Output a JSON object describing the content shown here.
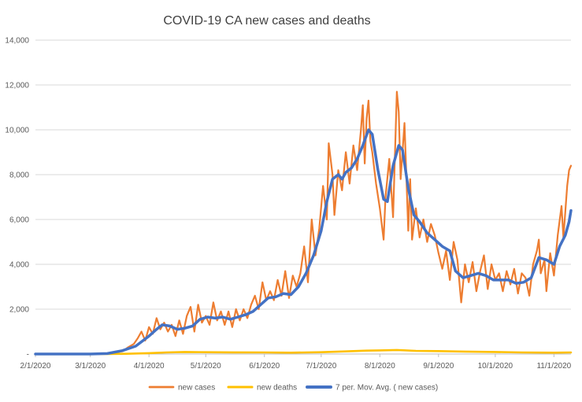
{
  "chart_data": {
    "type": "line",
    "title": "COVID-19 CA new cases and deaths",
    "xlabel": "",
    "ylabel": "",
    "ylim": [
      0,
      14000
    ],
    "xlim": [
      "2020-02-01",
      "2020-11-10"
    ],
    "grid": "horizontal",
    "legend_position": "bottom",
    "y_ticks": [
      0,
      2000,
      4000,
      6000,
      8000,
      10000,
      12000,
      14000
    ],
    "y_tick_labels": [
      "-",
      "2,000",
      "4,000",
      "6,000",
      "8,000",
      "10,000",
      "12,000",
      "14,000"
    ],
    "x_ticks": [
      "2020-02-01",
      "2020-03-01",
      "2020-04-01",
      "2020-05-01",
      "2020-06-01",
      "2020-07-01",
      "2020-08-01",
      "2020-09-01",
      "2020-10-01",
      "2020-11-01"
    ],
    "x_tick_labels": [
      "2/1/2020",
      "3/1/2020",
      "4/1/2020",
      "5/1/2020",
      "6/1/2020",
      "7/1/2020",
      "8/1/2020",
      "9/1/2020",
      "10/1/2020",
      "11/1/2020"
    ],
    "series": [
      {
        "name": "new cases",
        "color": "#ED7D31",
        "points": [
          [
            "2020-02-01",
            0
          ],
          [
            "2020-02-15",
            0
          ],
          [
            "2020-03-01",
            0
          ],
          [
            "2020-03-10",
            20
          ],
          [
            "2020-03-15",
            80
          ],
          [
            "2020-03-18",
            120
          ],
          [
            "2020-03-21",
            300
          ],
          [
            "2020-03-24",
            450
          ],
          [
            "2020-03-26",
            700
          ],
          [
            "2020-03-28",
            1000
          ],
          [
            "2020-03-30",
            600
          ],
          [
            "2020-04-01",
            1200
          ],
          [
            "2020-04-03",
            900
          ],
          [
            "2020-04-05",
            1600
          ],
          [
            "2020-04-07",
            1100
          ],
          [
            "2020-04-09",
            1400
          ],
          [
            "2020-04-11",
            1000
          ],
          [
            "2020-04-13",
            1300
          ],
          [
            "2020-04-15",
            800
          ],
          [
            "2020-04-17",
            1500
          ],
          [
            "2020-04-19",
            900
          ],
          [
            "2020-04-21",
            1700
          ],
          [
            "2020-04-23",
            2100
          ],
          [
            "2020-04-25",
            1000
          ],
          [
            "2020-04-27",
            2200
          ],
          [
            "2020-04-29",
            1400
          ],
          [
            "2020-05-01",
            1700
          ],
          [
            "2020-05-03",
            1300
          ],
          [
            "2020-05-05",
            2300
          ],
          [
            "2020-05-07",
            1500
          ],
          [
            "2020-05-09",
            1900
          ],
          [
            "2020-05-11",
            1300
          ],
          [
            "2020-05-13",
            1900
          ],
          [
            "2020-05-15",
            1200
          ],
          [
            "2020-05-17",
            2000
          ],
          [
            "2020-05-19",
            1500
          ],
          [
            "2020-05-21",
            2000
          ],
          [
            "2020-05-23",
            1600
          ],
          [
            "2020-05-25",
            2200
          ],
          [
            "2020-05-27",
            2600
          ],
          [
            "2020-05-29",
            2000
          ],
          [
            "2020-05-31",
            3200
          ],
          [
            "2020-06-02",
            2400
          ],
          [
            "2020-06-04",
            2800
          ],
          [
            "2020-06-06",
            2400
          ],
          [
            "2020-06-08",
            3300
          ],
          [
            "2020-06-10",
            2600
          ],
          [
            "2020-06-12",
            3700
          ],
          [
            "2020-06-14",
            2500
          ],
          [
            "2020-06-16",
            3500
          ],
          [
            "2020-06-18",
            3000
          ],
          [
            "2020-06-20",
            3600
          ],
          [
            "2020-06-22",
            4800
          ],
          [
            "2020-06-24",
            3200
          ],
          [
            "2020-06-26",
            6000
          ],
          [
            "2020-06-28",
            4400
          ],
          [
            "2020-06-30",
            5600
          ],
          [
            "2020-07-02",
            7500
          ],
          [
            "2020-07-04",
            6000
          ],
          [
            "2020-07-05",
            9400
          ],
          [
            "2020-07-07",
            8000
          ],
          [
            "2020-07-08",
            6200
          ],
          [
            "2020-07-10",
            8200
          ],
          [
            "2020-07-12",
            7300
          ],
          [
            "2020-07-14",
            9000
          ],
          [
            "2020-07-16",
            7600
          ],
          [
            "2020-07-18",
            9300
          ],
          [
            "2020-07-20",
            8200
          ],
          [
            "2020-07-22",
            10000
          ],
          [
            "2020-07-23",
            11100
          ],
          [
            "2020-07-24",
            8500
          ],
          [
            "2020-07-25",
            10500
          ],
          [
            "2020-07-26",
            11300
          ],
          [
            "2020-07-27",
            9500
          ],
          [
            "2020-07-28",
            9000
          ],
          [
            "2020-07-30",
            7600
          ],
          [
            "2020-08-01",
            6500
          ],
          [
            "2020-08-03",
            5100
          ],
          [
            "2020-08-04",
            7000
          ],
          [
            "2020-08-06",
            8700
          ],
          [
            "2020-08-08",
            6100
          ],
          [
            "2020-08-10",
            11700
          ],
          [
            "2020-08-11",
            10800
          ],
          [
            "2020-08-12",
            7800
          ],
          [
            "2020-08-14",
            10300
          ],
          [
            "2020-08-16",
            5500
          ],
          [
            "2020-08-17",
            7800
          ],
          [
            "2020-08-18",
            5100
          ],
          [
            "2020-08-20",
            6500
          ],
          [
            "2020-08-22",
            5200
          ],
          [
            "2020-08-24",
            6000
          ],
          [
            "2020-08-26",
            5000
          ],
          [
            "2020-08-28",
            5800
          ],
          [
            "2020-08-30",
            5300
          ],
          [
            "2020-09-01",
            4500
          ],
          [
            "2020-09-03",
            3800
          ],
          [
            "2020-09-05",
            4600
          ],
          [
            "2020-09-07",
            3300
          ],
          [
            "2020-09-09",
            5000
          ],
          [
            "2020-09-11",
            4200
          ],
          [
            "2020-09-13",
            2300
          ],
          [
            "2020-09-15",
            4000
          ],
          [
            "2020-09-17",
            3200
          ],
          [
            "2020-09-19",
            4100
          ],
          [
            "2020-09-21",
            2800
          ],
          [
            "2020-09-23",
            3700
          ],
          [
            "2020-09-25",
            4400
          ],
          [
            "2020-09-27",
            2900
          ],
          [
            "2020-09-29",
            4000
          ],
          [
            "2020-10-01",
            3300
          ],
          [
            "2020-10-03",
            3600
          ],
          [
            "2020-10-05",
            2800
          ],
          [
            "2020-10-07",
            3700
          ],
          [
            "2020-10-09",
            3100
          ],
          [
            "2020-10-11",
            3800
          ],
          [
            "2020-10-13",
            2700
          ],
          [
            "2020-10-15",
            3600
          ],
          [
            "2020-10-17",
            3400
          ],
          [
            "2020-10-19",
            2600
          ],
          [
            "2020-10-21",
            4000
          ],
          [
            "2020-10-23",
            4600
          ],
          [
            "2020-10-24",
            5100
          ],
          [
            "2020-10-25",
            3600
          ],
          [
            "2020-10-27",
            4200
          ],
          [
            "2020-10-28",
            2800
          ],
          [
            "2020-10-30",
            4500
          ],
          [
            "2020-11-01",
            3500
          ],
          [
            "2020-11-03",
            5300
          ],
          [
            "2020-11-05",
            6600
          ],
          [
            "2020-11-06",
            5200
          ],
          [
            "2020-11-08",
            7500
          ],
          [
            "2020-11-09",
            8200
          ],
          [
            "2020-11-10",
            8400
          ]
        ]
      },
      {
        "name": "new deaths",
        "color": "#FFC000",
        "points": [
          [
            "2020-02-01",
            0
          ],
          [
            "2020-03-10",
            0
          ],
          [
            "2020-03-20",
            10
          ],
          [
            "2020-04-01",
            40
          ],
          [
            "2020-04-10",
            70
          ],
          [
            "2020-04-20",
            90
          ],
          [
            "2020-05-01",
            80
          ],
          [
            "2020-05-15",
            75
          ],
          [
            "2020-06-01",
            70
          ],
          [
            "2020-06-15",
            60
          ],
          [
            "2020-07-01",
            80
          ],
          [
            "2020-07-15",
            120
          ],
          [
            "2020-07-25",
            150
          ],
          [
            "2020-08-01",
            160
          ],
          [
            "2020-08-10",
            180
          ],
          [
            "2020-08-20",
            140
          ],
          [
            "2020-09-01",
            130
          ],
          [
            "2020-09-15",
            110
          ],
          [
            "2020-10-01",
            90
          ],
          [
            "2020-10-15",
            70
          ],
          [
            "2020-11-01",
            60
          ],
          [
            "2020-11-10",
            70
          ]
        ]
      },
      {
        "name": "7 per. Mov. Avg. ( new cases)",
        "color": "#4472C4",
        "points": [
          [
            "2020-02-01",
            0
          ],
          [
            "2020-03-01",
            0
          ],
          [
            "2020-03-10",
            20
          ],
          [
            "2020-03-18",
            150
          ],
          [
            "2020-03-25",
            350
          ],
          [
            "2020-04-01",
            800
          ],
          [
            "2020-04-05",
            1100
          ],
          [
            "2020-04-08",
            1300
          ],
          [
            "2020-04-12",
            1250
          ],
          [
            "2020-04-16",
            1100
          ],
          [
            "2020-04-20",
            1150
          ],
          [
            "2020-04-24",
            1250
          ],
          [
            "2020-04-28",
            1550
          ],
          [
            "2020-05-02",
            1650
          ],
          [
            "2020-05-06",
            1600
          ],
          [
            "2020-05-10",
            1650
          ],
          [
            "2020-05-14",
            1550
          ],
          [
            "2020-05-18",
            1650
          ],
          [
            "2020-05-22",
            1750
          ],
          [
            "2020-05-26",
            1900
          ],
          [
            "2020-05-30",
            2200
          ],
          [
            "2020-06-03",
            2500
          ],
          [
            "2020-06-07",
            2550
          ],
          [
            "2020-06-11",
            2700
          ],
          [
            "2020-06-15",
            2650
          ],
          [
            "2020-06-19",
            3000
          ],
          [
            "2020-06-23",
            3600
          ],
          [
            "2020-06-27",
            4400
          ],
          [
            "2020-07-01",
            5500
          ],
          [
            "2020-07-04",
            6800
          ],
          [
            "2020-07-07",
            7800
          ],
          [
            "2020-07-10",
            8000
          ],
          [
            "2020-07-12",
            7800
          ],
          [
            "2020-07-14",
            8100
          ],
          [
            "2020-07-17",
            8300
          ],
          [
            "2020-07-20",
            8700
          ],
          [
            "2020-07-23",
            9300
          ],
          [
            "2020-07-26",
            10000
          ],
          [
            "2020-07-28",
            9800
          ],
          [
            "2020-07-31",
            8200
          ],
          [
            "2020-08-03",
            6900
          ],
          [
            "2020-08-05",
            6800
          ],
          [
            "2020-08-08",
            8400
          ],
          [
            "2020-08-11",
            9300
          ],
          [
            "2020-08-13",
            9100
          ],
          [
            "2020-08-16",
            7400
          ],
          [
            "2020-08-19",
            6200
          ],
          [
            "2020-08-22",
            5900
          ],
          [
            "2020-08-26",
            5400
          ],
          [
            "2020-08-30",
            5100
          ],
          [
            "2020-09-03",
            4800
          ],
          [
            "2020-09-07",
            4600
          ],
          [
            "2020-09-10",
            3700
          ],
          [
            "2020-09-14",
            3400
          ],
          [
            "2020-09-18",
            3500
          ],
          [
            "2020-09-22",
            3600
          ],
          [
            "2020-09-26",
            3500
          ],
          [
            "2020-09-30",
            3300
          ],
          [
            "2020-10-04",
            3300
          ],
          [
            "2020-10-08",
            3300
          ],
          [
            "2020-10-12",
            3150
          ],
          [
            "2020-10-16",
            3200
          ],
          [
            "2020-10-20",
            3400
          ],
          [
            "2020-10-24",
            4300
          ],
          [
            "2020-10-28",
            4200
          ],
          [
            "2020-11-01",
            4000
          ],
          [
            "2020-11-04",
            4800
          ],
          [
            "2020-11-07",
            5300
          ],
          [
            "2020-11-09",
            5900
          ],
          [
            "2020-11-10",
            6400
          ]
        ]
      }
    ]
  }
}
